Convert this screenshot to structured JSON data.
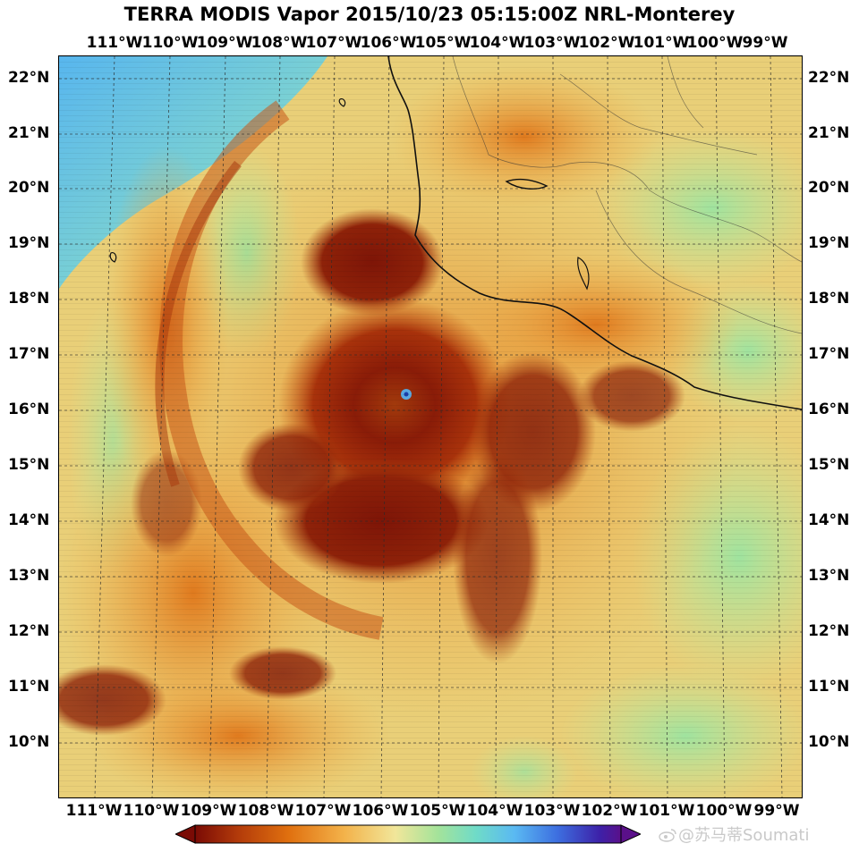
{
  "title": "TERRA MODIS Vapor 2015/10/23 05:15:00Z NRL-Monterey",
  "longitude_labels": [
    "111°W",
    "110°W",
    "109°W",
    "108°W",
    "107°W",
    "106°W",
    "105°W",
    "104°W",
    "103°W",
    "102°W",
    "101°W",
    "100°W",
    "99°W"
  ],
  "latitude_labels": [
    "22°N",
    "21°N",
    "20°N",
    "19°N",
    "18°N",
    "17°N",
    "16°N",
    "15°N",
    "14°N",
    "13°N",
    "12°N",
    "11°N",
    "10°N"
  ],
  "colorbar": {
    "stops": [
      "#7a0b05",
      "#b23a0a",
      "#e0700f",
      "#f3b24a",
      "#f1e69a",
      "#a4e39a",
      "#6fdbc8",
      "#5ab9f2",
      "#3d6fe0",
      "#3d21a8",
      "#5a108a"
    ]
  },
  "colors": {
    "land_low": "#f2d28a",
    "ocean_dry": "#a8e3a0",
    "dry_blue": "#5fb8e8",
    "moist": "#e48424",
    "very_moist": "#8a1c08",
    "grid": "#2a2a2a",
    "coast": "#101010"
  },
  "watermark": "@苏马蒂Soumati"
}
